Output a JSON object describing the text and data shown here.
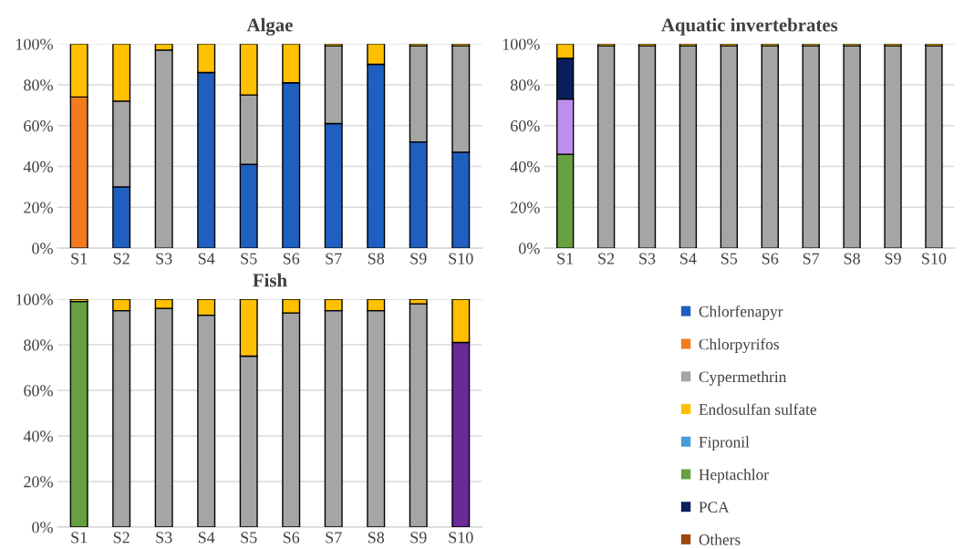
{
  "chart_data": [
    {
      "type": "bar",
      "title": "Algae",
      "stacked": true,
      "grid": "y",
      "legend": "right",
      "categories": [
        "S1",
        "S2",
        "S3",
        "S4",
        "S5",
        "S6",
        "S7",
        "S8",
        "S9",
        "S10"
      ],
      "ylim": [
        0,
        100
      ],
      "yticks": [
        {
          "value": 0,
          "label": "0%"
        },
        {
          "value": 20,
          "label": "20%"
        },
        {
          "value": 40,
          "label": "40%"
        },
        {
          "value": 60,
          "label": "60%"
        },
        {
          "value": 80,
          "label": "80%"
        },
        {
          "value": 100,
          "label": "100%"
        }
      ],
      "series": [
        {
          "name": "Chlorfenapyr",
          "color": "#1f5fbf",
          "values": [
            null,
            30,
            null,
            86,
            41,
            81,
            61,
            90,
            52,
            47
          ]
        },
        {
          "name": "Chlorpyrifos",
          "color": "#f47a20",
          "values": [
            74,
            null,
            null,
            null,
            null,
            null,
            null,
            null,
            null,
            null
          ]
        },
        {
          "name": "Cypermethrin",
          "color": "#a5a5a5",
          "values": [
            null,
            42,
            97,
            null,
            34,
            null,
            38,
            null,
            47,
            52
          ]
        },
        {
          "name": "Endosulfan sulfate",
          "color": "#ffc000",
          "values": [
            26,
            28,
            3,
            14,
            25,
            19,
            1,
            10,
            1,
            1
          ]
        },
        {
          "name": "Fipronil",
          "color": "#4a9ad8",
          "values": [
            null,
            null,
            null,
            null,
            null,
            null,
            null,
            null,
            null,
            null
          ]
        }
      ]
    },
    {
      "type": "bar",
      "title": "Aquatic invertebrates",
      "stacked": true,
      "grid": "y",
      "legend": "bottom left",
      "categories": [
        "S1",
        "S2",
        "S3",
        "S4",
        "S5",
        "S6",
        "S7",
        "S8",
        "S9",
        "S10"
      ],
      "ylim": [
        0,
        100
      ],
      "yticks": [
        {
          "value": 0,
          "label": "0%"
        },
        {
          "value": 20,
          "label": "20%"
        },
        {
          "value": 40,
          "label": "40%"
        },
        {
          "value": 60,
          "label": "60%"
        },
        {
          "value": 80,
          "label": "80%"
        },
        {
          "value": 100,
          "label": "100%"
        }
      ],
      "series": [
        {
          "name": "Heptachlor",
          "color": "#67a040",
          "values": [
            46,
            null,
            null,
            null,
            null,
            null,
            null,
            null,
            null,
            null
          ]
        },
        {
          "color": "#bf8ff0",
          "values": [
            27,
            null,
            null,
            null,
            null,
            null,
            null,
            null,
            null,
            null
          ]
        },
        {
          "name": "PCA",
          "color": "#0a1f5c",
          "values": [
            20,
            null,
            null,
            null,
            null,
            null,
            null,
            null,
            null,
            null
          ]
        },
        {
          "name": "Cypermethrin",
          "color": "#a5a5a5",
          "values": [
            null,
            99,
            99,
            99,
            99,
            99,
            99,
            99,
            99,
            99
          ]
        },
        {
          "name": "Endosulfan sulfate",
          "color": "#ffc000",
          "values": [
            7,
            1,
            1,
            1,
            1,
            1,
            1,
            1,
            1,
            1
          ]
        }
      ]
    },
    {
      "type": "bar",
      "title": "Fish",
      "stacked": true,
      "grid": "y",
      "legend": "right",
      "categories": [
        "S1",
        "S2",
        "S3",
        "S4",
        "S5",
        "S6",
        "S7",
        "S8",
        "S9",
        "S10"
      ],
      "ylim": [
        0,
        100
      ],
      "yticks": [
        {
          "value": 0,
          "label": "0%"
        },
        {
          "value": 20,
          "label": "20%"
        },
        {
          "value": 40,
          "label": "40%"
        },
        {
          "value": 60,
          "label": "60%"
        },
        {
          "value": 80,
          "label": "80%"
        },
        {
          "value": 100,
          "label": "100%"
        }
      ],
      "series": [
        {
          "name": "Heptachlor",
          "color": "#67a040",
          "values": [
            99,
            null,
            null,
            null,
            null,
            null,
            null,
            null,
            null,
            null
          ]
        },
        {
          "color": "#6b2a96",
          "values": [
            null,
            null,
            null,
            null,
            null,
            null,
            null,
            null,
            null,
            81
          ]
        },
        {
          "name": "Cypermethrin",
          "color": "#a5a5a5",
          "values": [
            null,
            95,
            96,
            93,
            75,
            94,
            95,
            95,
            98,
            null
          ]
        },
        {
          "name": "Endosulfan sulfate",
          "color": "#ffc000",
          "values": [
            1,
            5,
            4,
            7,
            25,
            6,
            5,
            5,
            2,
            19
          ]
        },
        {
          "name": "Others",
          "color": "#9e480e",
          "values": [
            null,
            null,
            null,
            null,
            null,
            null,
            null,
            null,
            null,
            null
          ]
        }
      ]
    }
  ]
}
